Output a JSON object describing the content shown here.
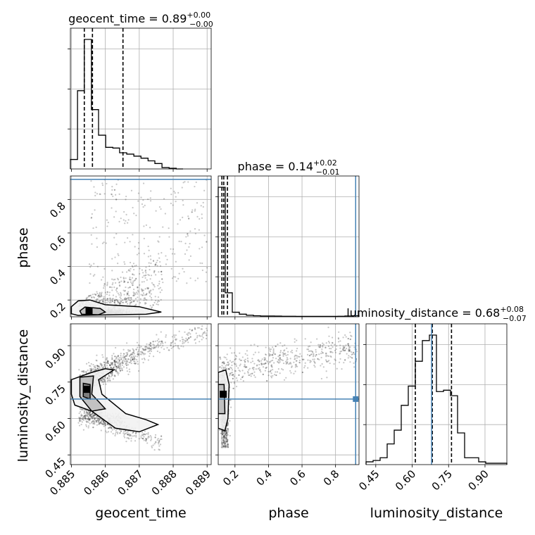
{
  "chart_data": {
    "type": "corner",
    "parameters": [
      "geocent_time",
      "phase",
      "luminosity_distance"
    ],
    "axis_labels": {
      "x": [
        "geocent_time",
        "phase",
        "luminosity_distance"
      ],
      "y": [
        "phase",
        "luminosity_distance"
      ]
    },
    "ranges": {
      "geocent_time": [
        0.88497,
        0.88912
      ],
      "phase": [
        0.1,
        0.94
      ],
      "luminosity_distance": [
        0.41,
        0.99
      ]
    },
    "ticks": {
      "geocent_time": [
        "0.885",
        "0.886",
        "0.887",
        "0.888",
        "0.889"
      ],
      "phase": [
        "0.2",
        "0.4",
        "0.6",
        "0.8"
      ],
      "luminosity_distance": [
        "0.45",
        "0.60",
        "0.75",
        "0.90"
      ]
    },
    "diag_titles": [
      {
        "name": "geocent_time",
        "value": "0.89",
        "plus": "+0.00",
        "minus": "−0.00"
      },
      {
        "name": "phase",
        "value": "0.14",
        "plus": "+0.02",
        "minus": "−0.01"
      },
      {
        "name": "luminosity_distance",
        "value": "0.68",
        "plus": "+0.08",
        "minus": "−0.07"
      }
    ],
    "quantiles": {
      "geocent_time": [
        0.88538,
        0.88562,
        0.88652
      ],
      "phase": [
        0.122,
        0.133,
        0.155
      ],
      "luminosity_distance": [
        0.613,
        0.683,
        0.762
      ]
    },
    "truths": {
      "phase": 0.92,
      "luminosity_distance": 0.68
    },
    "histograms": {
      "geocent_time": {
        "edges": [
          0.88497,
          0.88518,
          0.88538,
          0.88559,
          0.8858,
          0.88601,
          0.88622,
          0.88642,
          0.88663,
          0.88684,
          0.88705,
          0.88726,
          0.88746,
          0.88767,
          0.88788,
          0.88809,
          0.88829
        ],
        "counts": [
          0.07,
          0.58,
          0.96,
          0.44,
          0.25,
          0.16,
          0.155,
          0.12,
          0.11,
          0.095,
          0.08,
          0.06,
          0.04,
          0.01,
          0.005,
          0.0
        ]
      },
      "phase": {
        "edges": [
          0.1,
          0.142,
          0.184,
          0.226,
          0.268,
          0.31,
          0.352,
          0.394,
          0.436,
          0.478,
          0.52,
          0.562,
          0.604,
          0.646,
          0.688,
          0.73,
          0.772,
          0.814,
          0.856,
          0.898,
          0.94
        ],
        "counts": [
          1.0,
          0.185,
          0.035,
          0.02,
          0.012,
          0.008,
          0.006,
          0.006,
          0.005,
          0.004,
          0.004,
          0.003,
          0.003,
          0.003,
          0.003,
          0.003,
          0.003,
          0.004,
          0.006,
          0.008
        ]
      },
      "luminosity_distance": {
        "edges": [
          0.41,
          0.439,
          0.468,
          0.497,
          0.526,
          0.555,
          0.584,
          0.613,
          0.642,
          0.671,
          0.7,
          0.729,
          0.758,
          0.787,
          0.816,
          0.845,
          0.874,
          0.903,
          0.932,
          0.961,
          0.99
        ],
        "counts": [
          0.02,
          0.03,
          0.05,
          0.15,
          0.25,
          0.43,
          0.57,
          0.75,
          0.9,
          0.94,
          0.53,
          0.54,
          0.5,
          0.23,
          0.05,
          0.05,
          0.02,
          0.01,
          0.01,
          0.01
        ]
      }
    },
    "density_peaks": {
      "phase_vs_geocent_time": [
        0.88552,
        0.135
      ],
      "luminosity_distance_vs_geocent_time": [
        0.88545,
        0.72
      ],
      "luminosity_distance_vs_phase": [
        0.13,
        0.7
      ]
    }
  }
}
